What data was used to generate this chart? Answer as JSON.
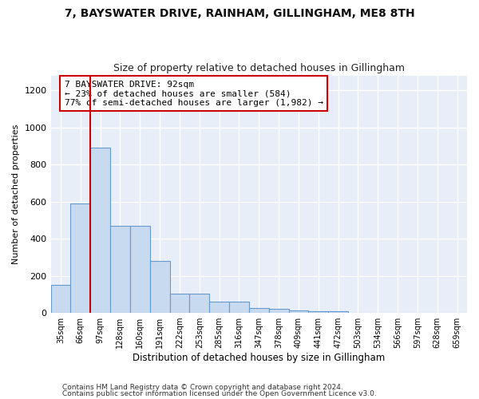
{
  "title1": "7, BAYSWATER DRIVE, RAINHAM, GILLINGHAM, ME8 8TH",
  "title2": "Size of property relative to detached houses in Gillingham",
  "xlabel": "Distribution of detached houses by size in Gillingham",
  "ylabel": "Number of detached properties",
  "categories": [
    "35sqm",
    "66sqm",
    "97sqm",
    "128sqm",
    "160sqm",
    "191sqm",
    "222sqm",
    "253sqm",
    "285sqm",
    "316sqm",
    "347sqm",
    "378sqm",
    "409sqm",
    "441sqm",
    "472sqm",
    "503sqm",
    "534sqm",
    "566sqm",
    "597sqm",
    "628sqm",
    "659sqm"
  ],
  "values": [
    150,
    590,
    890,
    470,
    470,
    280,
    105,
    105,
    60,
    60,
    28,
    20,
    15,
    10,
    10,
    0,
    0,
    0,
    0,
    0,
    0
  ],
  "bar_color": "#c8daf0",
  "bar_edge_color": "#6699cc",
  "vline_x": 1.5,
  "vline_color": "#cc0000",
  "annotation_text": "7 BAYSWATER DRIVE: 92sqm\n← 23% of detached houses are smaller (584)\n77% of semi-detached houses are larger (1,982) →",
  "annotation_box_color": "#ffffff",
  "annotation_box_edge": "#cc0000",
  "ylim": [
    0,
    1280
  ],
  "yticks": [
    0,
    200,
    400,
    600,
    800,
    1000,
    1200
  ],
  "footer1": "Contains HM Land Registry data © Crown copyright and database right 2024.",
  "footer2": "Contains public sector information licensed under the Open Government Licence v3.0.",
  "bg_color": "#ffffff",
  "plot_bg_color": "#e8eef8",
  "title1_fontsize": 10,
  "title2_fontsize": 9,
  "grid_color": "#ffffff",
  "annotation_fontsize": 8,
  "footer_fontsize": 6.5
}
